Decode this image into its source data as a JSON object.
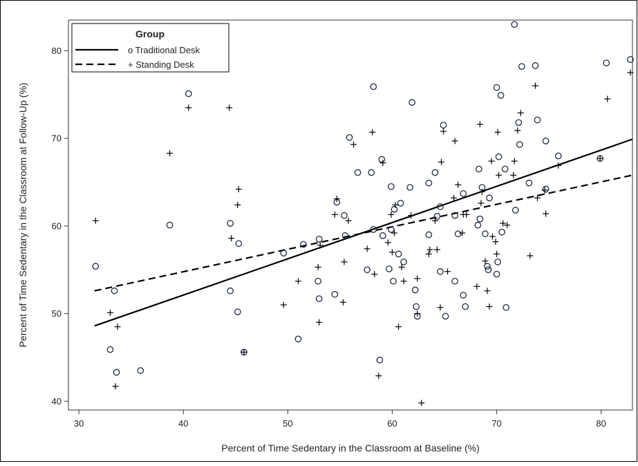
{
  "chart_data": {
    "type": "scatter",
    "title": "",
    "xlabel": "Percent of Time Sedentary in the Classroom at Baseline (%)",
    "ylabel": "Percent of Time Sedentary in the Classroom at Follow-Up (%)",
    "xlim": [
      29,
      83
    ],
    "ylim": [
      39,
      83.5
    ],
    "xticks": [
      30,
      40,
      50,
      60,
      70,
      80
    ],
    "yticks": [
      40,
      50,
      60,
      70,
      80
    ],
    "grid": false,
    "legend": {
      "title": "Group",
      "placement": "top-left",
      "entries": [
        {
          "label": "o  Traditional Desk",
          "line": "solid"
        },
        {
          "label": "+  Standing Desk",
          "line": "dashed"
        }
      ]
    },
    "series": [
      {
        "name": "Traditional Desk",
        "marker": "circle",
        "fit_line": {
          "x": [
            31.5,
            83
          ],
          "y": [
            48.6,
            69.9
          ]
        },
        "points": [
          [
            31.6,
            55.4
          ],
          [
            33.0,
            45.9
          ],
          [
            33.4,
            52.6
          ],
          [
            33.6,
            43.3
          ],
          [
            35.9,
            43.5
          ],
          [
            38.7,
            60.1
          ],
          [
            40.5,
            75.1
          ],
          [
            44.5,
            60.3
          ],
          [
            44.5,
            52.6
          ],
          [
            45.3,
            58.0
          ],
          [
            45.2,
            50.2
          ],
          [
            45.8,
            45.6
          ],
          [
            49.6,
            56.9
          ],
          [
            51.0,
            47.1
          ],
          [
            51.5,
            57.9
          ],
          [
            52.9,
            53.7
          ],
          [
            53.0,
            51.7
          ],
          [
            53.0,
            58.5
          ],
          [
            54.5,
            52.2
          ],
          [
            54.7,
            62.7
          ],
          [
            55.4,
            61.2
          ],
          [
            55.5,
            58.9
          ],
          [
            55.9,
            70.1
          ],
          [
            56.7,
            66.1
          ],
          [
            57.6,
            55.0
          ],
          [
            58.0,
            66.1
          ],
          [
            58.2,
            75.9
          ],
          [
            58.2,
            59.6
          ],
          [
            58.8,
            44.7
          ],
          [
            59.0,
            67.6
          ],
          [
            59.1,
            58.9
          ],
          [
            59.7,
            55.1
          ],
          [
            59.9,
            64.5
          ],
          [
            59.9,
            59.6
          ],
          [
            60.1,
            53.7
          ],
          [
            60.2,
            61.9
          ],
          [
            60.6,
            56.8
          ],
          [
            60.8,
            62.6
          ],
          [
            61.1,
            55.9
          ],
          [
            61.7,
            64.4
          ],
          [
            61.9,
            74.1
          ],
          [
            62.2,
            52.7
          ],
          [
            62.3,
            50.8
          ],
          [
            62.4,
            49.7
          ],
          [
            63.5,
            64.9
          ],
          [
            63.5,
            59.0
          ],
          [
            64.1,
            66.1
          ],
          [
            64.3,
            61.1
          ],
          [
            64.6,
            62.2
          ],
          [
            64.6,
            54.8
          ],
          [
            64.9,
            71.5
          ],
          [
            65.1,
            49.7
          ],
          [
            66.0,
            53.7
          ],
          [
            66.0,
            61.2
          ],
          [
            66.3,
            59.1
          ],
          [
            66.8,
            63.7
          ],
          [
            66.8,
            52.1
          ],
          [
            67.0,
            50.8
          ],
          [
            68.2,
            60.1
          ],
          [
            68.3,
            66.5
          ],
          [
            68.4,
            60.8
          ],
          [
            68.6,
            64.4
          ],
          [
            68.9,
            59.1
          ],
          [
            69.1,
            55.4
          ],
          [
            69.2,
            55.0
          ],
          [
            69.3,
            63.2
          ],
          [
            70.0,
            75.8
          ],
          [
            70.0,
            54.5
          ],
          [
            70.1,
            55.9
          ],
          [
            70.2,
            67.9
          ],
          [
            70.4,
            74.9
          ],
          [
            70.5,
            59.3
          ],
          [
            70.8,
            66.5
          ],
          [
            70.9,
            50.7
          ],
          [
            71.7,
            83.0
          ],
          [
            71.8,
            61.8
          ],
          [
            72.1,
            71.8
          ],
          [
            72.2,
            69.3
          ],
          [
            72.4,
            78.2
          ],
          [
            73.1,
            64.9
          ],
          [
            73.7,
            78.3
          ],
          [
            73.9,
            72.1
          ],
          [
            74.7,
            69.7
          ],
          [
            74.7,
            64.2
          ],
          [
            75.9,
            68.0
          ],
          [
            79.9,
            67.7
          ],
          [
            80.5,
            78.6
          ],
          [
            82.8,
            79.0
          ]
        ]
      },
      {
        "name": "Standing Desk",
        "marker": "plus",
        "fit_line": {
          "x": [
            31.5,
            83
          ],
          "y": [
            52.6,
            65.8
          ]
        },
        "points": [
          [
            31.6,
            60.6
          ],
          [
            33.0,
            50.1
          ],
          [
            33.5,
            41.7
          ],
          [
            33.7,
            48.5
          ],
          [
            38.7,
            68.3
          ],
          [
            40.5,
            73.5
          ],
          [
            44.4,
            73.5
          ],
          [
            44.6,
            58.6
          ],
          [
            45.2,
            62.4
          ],
          [
            45.3,
            64.2
          ],
          [
            45.8,
            45.6
          ],
          [
            49.6,
            51.0
          ],
          [
            51.0,
            53.7
          ],
          [
            52.9,
            55.3
          ],
          [
            53.0,
            49.0
          ],
          [
            53.1,
            57.8
          ],
          [
            54.5,
            61.3
          ],
          [
            54.7,
            63.1
          ],
          [
            55.3,
            51.3
          ],
          [
            55.4,
            55.9
          ],
          [
            55.8,
            60.6
          ],
          [
            56.3,
            69.3
          ],
          [
            57.6,
            57.4
          ],
          [
            58.1,
            70.7
          ],
          [
            58.3,
            54.5
          ],
          [
            58.7,
            42.9
          ],
          [
            59.1,
            67.2
          ],
          [
            59.6,
            58.1
          ],
          [
            59.9,
            61.3
          ],
          [
            60.0,
            57.0
          ],
          [
            60.2,
            59.2
          ],
          [
            60.3,
            62.4
          ],
          [
            60.6,
            48.5
          ],
          [
            60.9,
            55.3
          ],
          [
            61.1,
            53.7
          ],
          [
            61.8,
            61.2
          ],
          [
            62.4,
            54.0
          ],
          [
            62.4,
            50.0
          ],
          [
            62.8,
            39.8
          ],
          [
            63.5,
            56.8
          ],
          [
            63.6,
            57.3
          ],
          [
            64.1,
            60.6
          ],
          [
            64.3,
            57.3
          ],
          [
            64.6,
            50.7
          ],
          [
            64.7,
            67.3
          ],
          [
            64.9,
            70.8
          ],
          [
            65.3,
            54.8
          ],
          [
            65.9,
            63.2
          ],
          [
            66.0,
            69.7
          ],
          [
            66.3,
            64.7
          ],
          [
            66.7,
            59.2
          ],
          [
            66.8,
            61.3
          ],
          [
            67.1,
            61.3
          ],
          [
            68.1,
            53.1
          ],
          [
            68.4,
            71.6
          ],
          [
            68.5,
            62.6
          ],
          [
            68.6,
            63.9
          ],
          [
            68.9,
            56.0
          ],
          [
            69.1,
            52.6
          ],
          [
            69.3,
            50.8
          ],
          [
            69.5,
            67.4
          ],
          [
            69.6,
            58.8
          ],
          [
            69.9,
            58.2
          ],
          [
            70.0,
            56.8
          ],
          [
            70.1,
            70.7
          ],
          [
            70.2,
            65.8
          ],
          [
            70.6,
            60.3
          ],
          [
            71.0,
            60.1
          ],
          [
            71.6,
            65.8
          ],
          [
            71.7,
            67.4
          ],
          [
            72.0,
            70.9
          ],
          [
            72.3,
            72.9
          ],
          [
            73.2,
            56.6
          ],
          [
            73.7,
            76.0
          ],
          [
            73.9,
            63.2
          ],
          [
            74.6,
            64.1
          ],
          [
            74.7,
            61.4
          ],
          [
            75.9,
            66.9
          ],
          [
            79.9,
            67.7
          ],
          [
            80.6,
            74.5
          ],
          [
            82.8,
            77.5
          ]
        ]
      }
    ]
  }
}
